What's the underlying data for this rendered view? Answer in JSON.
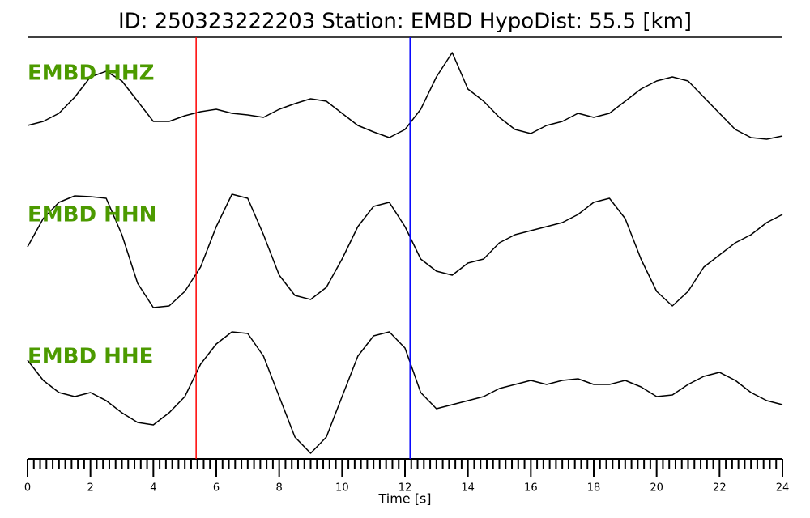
{
  "chart_data": {
    "type": "line",
    "title": "ID: 250323222203   Station: EMBD   HypoDist:    55.5 [km]",
    "x_label": "Time [s]",
    "xlim": [
      0,
      24
    ],
    "xticks": [
      0,
      2,
      4,
      6,
      8,
      10,
      12,
      14,
      16,
      18,
      20,
      22,
      24
    ],
    "xminorticks": [
      0.2,
      0.4,
      0.6,
      0.8,
      1,
      1.2,
      1.4,
      1.6,
      1.8,
      2.2,
      2.4,
      2.6,
      2.8,
      3,
      3.2,
      3.4,
      3.6,
      3.8,
      4.2,
      4.4,
      4.6,
      4.8,
      5,
      5.2,
      5.4,
      5.6,
      5.8,
      6.2,
      6.4,
      6.6,
      6.8,
      7,
      7.2,
      7.4,
      7.6,
      7.8,
      8.2,
      8.4,
      8.6,
      8.8,
      9,
      9.2,
      9.4,
      9.6,
      9.8,
      10.2,
      10.4,
      10.6,
      10.8,
      11,
      11.2,
      11.4,
      11.6,
      11.8,
      12.2,
      12.4,
      12.6,
      12.8,
      13,
      13.2,
      13.4,
      13.6,
      13.8,
      14.2,
      14.4,
      14.6,
      14.8,
      15,
      15.2,
      15.4,
      15.6,
      15.8,
      16.2,
      16.4,
      16.6,
      16.8,
      17,
      17.2,
      17.4,
      17.6,
      17.8,
      18.2,
      18.4,
      18.6,
      18.8,
      19,
      19.2,
      19.4,
      19.6,
      19.8,
      20.2,
      20.4,
      20.6,
      20.8,
      21,
      21.2,
      21.4,
      21.6,
      21.8,
      22.2,
      22.4,
      22.6,
      22.8,
      23,
      23.2,
      23.4,
      23.6,
      23.8
    ],
    "x": [
      0,
      0.5,
      1,
      1.5,
      2,
      2.5,
      3,
      3.5,
      4,
      4.5,
      5,
      5.5,
      6,
      6.5,
      7,
      7.5,
      8,
      8.5,
      9,
      9.5,
      10,
      10.5,
      11,
      11.5,
      12,
      12.5,
      13,
      13.5,
      14,
      14.5,
      15,
      15.5,
      16,
      16.5,
      17,
      17.5,
      18,
      18.5,
      19,
      19.5,
      20,
      20.5,
      21,
      21.5,
      22,
      22.5,
      23,
      23.5,
      24
    ],
    "ylim": [
      -85,
      85
    ],
    "label_color": "#4c9a00",
    "series": [
      {
        "name": "EMBD HHZ",
        "color": "#000000",
        "values": [
          -25,
          -20,
          -10,
          10,
          35,
          42,
          30,
          5,
          -20,
          -20,
          -13,
          -8,
          -5,
          -10,
          -12,
          -15,
          -5,
          2,
          8,
          5,
          -10,
          -25,
          -33,
          -40,
          -30,
          -5,
          35,
          65,
          20,
          5,
          -15,
          -30,
          -35,
          -25,
          -20,
          -10,
          -15,
          -10,
          5,
          20,
          30,
          35,
          30,
          10,
          -10,
          -30,
          -40,
          -42,
          -38
        ]
      },
      {
        "name": "EMBD HHN",
        "color": "#000000",
        "values": [
          0,
          35,
          55,
          63,
          62,
          60,
          15,
          -45,
          -75,
          -73,
          -55,
          -25,
          25,
          65,
          60,
          15,
          -35,
          -60,
          -65,
          -50,
          -15,
          25,
          50,
          55,
          25,
          -15,
          -30,
          -35,
          -20,
          -15,
          5,
          15,
          20,
          25,
          30,
          40,
          55,
          60,
          35,
          -15,
          -55,
          -73,
          -55,
          -25,
          -10,
          5,
          15,
          30,
          40
        ]
      },
      {
        "name": "EMBD HHE",
        "color": "#000000",
        "values": [
          35,
          10,
          -5,
          -10,
          -5,
          -15,
          -30,
          -42,
          -45,
          -30,
          -10,
          30,
          55,
          70,
          68,
          40,
          -10,
          -60,
          -80,
          -60,
          -10,
          40,
          65,
          70,
          50,
          -5,
          -25,
          -20,
          -15,
          -10,
          0,
          5,
          10,
          5,
          10,
          12,
          5,
          5,
          10,
          2,
          -10,
          -8,
          5,
          15,
          20,
          10,
          -5,
          -15,
          -20
        ]
      }
    ],
    "markers": [
      {
        "x": 5.36,
        "color": "#ff0000"
      },
      {
        "x": 12.16,
        "color": "#0000ff"
      }
    ]
  }
}
